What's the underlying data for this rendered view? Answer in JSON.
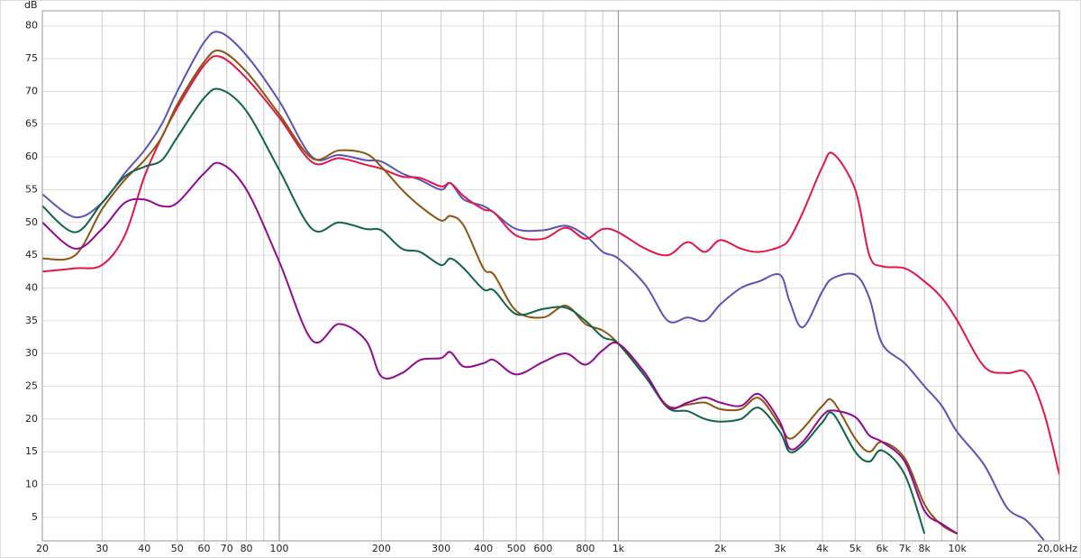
{
  "chart_data": {
    "type": "line",
    "y_label": "dB",
    "log_x": true,
    "xlim": [
      20,
      20000
    ],
    "ylim": [
      1.4,
      82.3
    ],
    "xticks": [
      20,
      30,
      40,
      50,
      60,
      70,
      80,
      100,
      200,
      300,
      400,
      500,
      600,
      800,
      {
        "value": 1000,
        "label": "1k"
      },
      {
        "value": 2000,
        "label": "2k"
      },
      {
        "value": 3000,
        "label": "3k"
      },
      {
        "value": 4000,
        "label": "4k"
      },
      {
        "value": 5000,
        "label": "5k"
      },
      {
        "value": 6000,
        "label": "6k"
      },
      {
        "value": 7000,
        "label": "7k"
      },
      {
        "value": 8000,
        "label": "8k"
      },
      {
        "value": 10000,
        "label": "10k"
      },
      {
        "value": 20000,
        "label": "20,0kHz"
      }
    ],
    "x_minor_grid": [
      90,
      900,
      9000
    ],
    "yticks": [
      5,
      10,
      15,
      20,
      25,
      30,
      35,
      40,
      45,
      50,
      55,
      60,
      65,
      70,
      75,
      80
    ],
    "grid": true,
    "x": [
      20,
      25,
      30,
      35,
      40,
      45,
      50,
      60,
      67,
      80,
      100,
      125,
      150,
      180,
      200,
      230,
      260,
      300,
      320,
      350,
      400,
      430,
      500,
      600,
      700,
      800,
      900,
      1000,
      1200,
      1400,
      1600,
      1800,
      2000,
      2300,
      2600,
      3000,
      3200,
      3500,
      4000,
      4300,
      5000,
      5500,
      6000,
      7000,
      8000,
      9000,
      10000,
      12000,
      14000,
      16000,
      18000,
      20000
    ],
    "series": [
      {
        "color": "#5a55b4",
        "values": [
          54.3,
          50.8,
          53,
          57.5,
          61,
          65,
          70,
          77.5,
          79,
          75.5,
          68.5,
          60,
          60.3,
          59.5,
          59.3,
          57.5,
          56.5,
          55,
          56,
          53.5,
          52.5,
          51.5,
          49,
          48.8,
          49.5,
          48,
          45.5,
          44.5,
          40.5,
          35,
          35.5,
          35,
          37.5,
          40,
          41,
          42,
          38,
          34,
          39.5,
          41.5,
          42,
          38.5,
          31.5,
          28.5,
          25,
          22,
          18,
          13,
          6.5,
          4.5,
          1.5,
          null
        ]
      },
      {
        "color": "#e0184a",
        "values": [
          42.5,
          43,
          43.5,
          48,
          57,
          63,
          67.5,
          74,
          75.3,
          72,
          66,
          59.2,
          59.8,
          58.8,
          58.2,
          57,
          56.8,
          55.5,
          56,
          54,
          52,
          51.5,
          48,
          47.5,
          49.2,
          47.5,
          49,
          48.5,
          46,
          45,
          47,
          45.5,
          47.3,
          46,
          45.5,
          46.3,
          47.5,
          51.5,
          58.5,
          60.5,
          55,
          45,
          43.3,
          43,
          41,
          38.5,
          35,
          28,
          27,
          27,
          21,
          11.5
        ]
      },
      {
        "color": "#8b5512",
        "values": [
          44.5,
          45,
          52,
          56.5,
          59.5,
          63,
          68,
          74.5,
          76.2,
          73,
          66.5,
          59.8,
          61,
          60.5,
          58.5,
          55,
          52.5,
          50.3,
          51,
          49.5,
          43,
          42,
          36.5,
          35.5,
          37.3,
          34.5,
          33.5,
          31.5,
          26.5,
          22,
          22.2,
          22.5,
          21.5,
          21.5,
          23.2,
          19,
          17,
          18.5,
          22,
          22.7,
          17,
          15,
          16.5,
          14,
          7,
          3.8,
          2.5,
          null,
          null,
          null,
          null,
          null
        ]
      },
      {
        "color": "#106448",
        "values": [
          52.5,
          48.5,
          53,
          57,
          58.5,
          59.5,
          63,
          69,
          70.3,
          67,
          58,
          49,
          50,
          49,
          48.8,
          46,
          45.5,
          43.5,
          44.5,
          43,
          39.8,
          39.6,
          36,
          36.8,
          37,
          35,
          32.5,
          31.5,
          26.5,
          21.7,
          21.2,
          20,
          19.6,
          20,
          21.7,
          18,
          15,
          16,
          19.5,
          20.8,
          15,
          13.5,
          15.2,
          11.5,
          2.5,
          null,
          null,
          null,
          null,
          null,
          null,
          null
        ]
      },
      {
        "color": "#920a92",
        "values": [
          50,
          46,
          49,
          53,
          53.5,
          52.5,
          53,
          57.5,
          59,
          55,
          44,
          32,
          34.5,
          32,
          26.5,
          27,
          29,
          29.3,
          30.2,
          28,
          28.5,
          29,
          26.8,
          28.7,
          30,
          28.3,
          30.5,
          31.5,
          27,
          21.8,
          22.5,
          23.3,
          22.5,
          22,
          23.8,
          19.5,
          15.5,
          16.5,
          20.5,
          21.3,
          20.3,
          17.5,
          16.5,
          13.5,
          6,
          4,
          2.5,
          null,
          null,
          null,
          null,
          null
        ]
      }
    ]
  }
}
